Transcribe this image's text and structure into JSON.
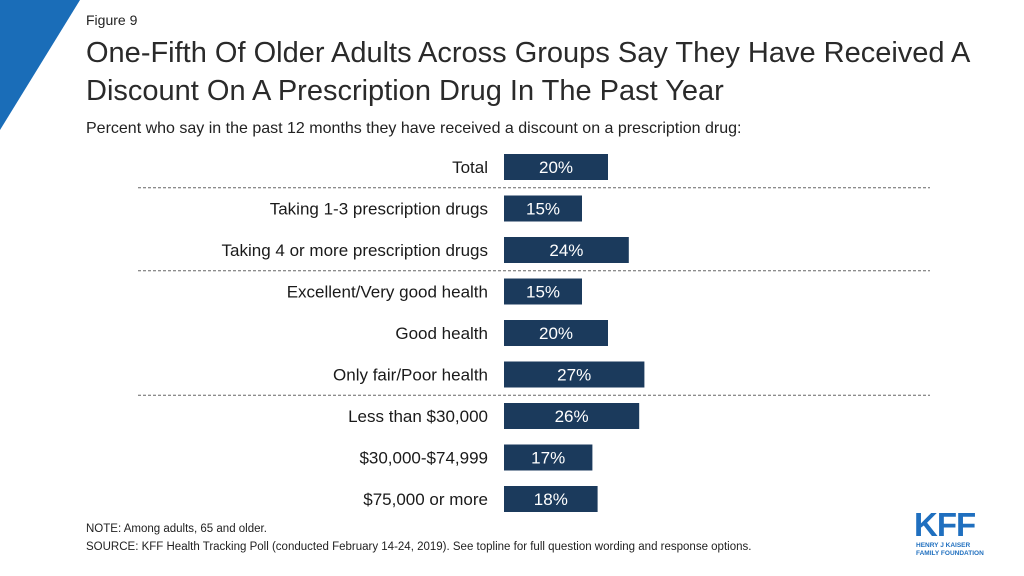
{
  "figure_label": "Figure 9",
  "title": "One-Fifth Of Older Adults Across Groups Say They Have Received A Discount On A Prescription Drug In The Past Year",
  "subtitle": "Percent who say in the past 12 months they have received a discount on a prescription drug:",
  "note": "NOTE: Among adults, 65 and older.",
  "source": "SOURCE: KFF Health Tracking Poll (conducted February 14-24, 2019). See topline for full question wording and response options.",
  "logo": {
    "text": "KFF",
    "sub_line1": "HENRY J KAISER",
    "sub_line2": "FAMILY FOUNDATION"
  },
  "colors": {
    "bar": "#1b3a5c",
    "accent": "#1f6fbf",
    "corner": "#1a6db8"
  },
  "chart_data": {
    "type": "bar",
    "orientation": "horizontal",
    "categories": [
      "Total",
      "Taking 1-3 prescription drugs",
      "Taking 4 or more prescription drugs",
      "Excellent/Very good health",
      "Good health",
      "Only fair/Poor health",
      "Less than $30,000",
      "$30,000-$74,999",
      "$75,000 or more"
    ],
    "values": [
      20,
      15,
      24,
      15,
      20,
      27,
      26,
      17,
      18
    ],
    "value_labels": [
      "20%",
      "15%",
      "24%",
      "15%",
      "20%",
      "27%",
      "26%",
      "17%",
      "18%"
    ],
    "group_breaks_after": [
      0,
      2,
      5
    ],
    "xlim": [
      0,
      100
    ],
    "grid": false
  }
}
